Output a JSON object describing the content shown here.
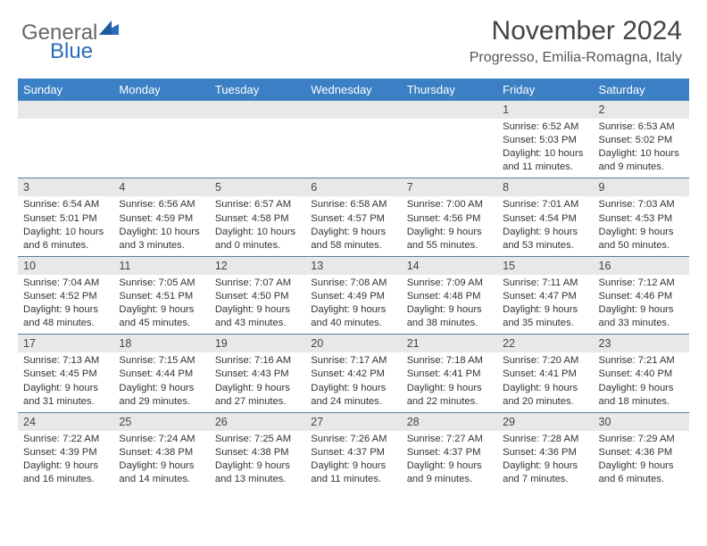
{
  "logo": {
    "general": "General",
    "blue": "Blue"
  },
  "title": "November 2024",
  "location": "Progresso, Emilia-Romagna, Italy",
  "colors": {
    "header_bg": "#3b7fc4",
    "header_text": "#ffffff",
    "daynum_bg": "#e8e8e8",
    "border": "#5a7a9a",
    "text": "#333333"
  },
  "day_headers": [
    "Sunday",
    "Monday",
    "Tuesday",
    "Wednesday",
    "Thursday",
    "Friday",
    "Saturday"
  ],
  "weeks": [
    {
      "nums": [
        "",
        "",
        "",
        "",
        "",
        "1",
        "2"
      ],
      "cells": [
        null,
        null,
        null,
        null,
        null,
        {
          "sunrise": "6:52 AM",
          "sunset": "5:03 PM",
          "daylight": "10 hours and 11 minutes."
        },
        {
          "sunrise": "6:53 AM",
          "sunset": "5:02 PM",
          "daylight": "10 hours and 9 minutes."
        }
      ]
    },
    {
      "nums": [
        "3",
        "4",
        "5",
        "6",
        "7",
        "8",
        "9"
      ],
      "cells": [
        {
          "sunrise": "6:54 AM",
          "sunset": "5:01 PM",
          "daylight": "10 hours and 6 minutes."
        },
        {
          "sunrise": "6:56 AM",
          "sunset": "4:59 PM",
          "daylight": "10 hours and 3 minutes."
        },
        {
          "sunrise": "6:57 AM",
          "sunset": "4:58 PM",
          "daylight": "10 hours and 0 minutes."
        },
        {
          "sunrise": "6:58 AM",
          "sunset": "4:57 PM",
          "daylight": "9 hours and 58 minutes."
        },
        {
          "sunrise": "7:00 AM",
          "sunset": "4:56 PM",
          "daylight": "9 hours and 55 minutes."
        },
        {
          "sunrise": "7:01 AM",
          "sunset": "4:54 PM",
          "daylight": "9 hours and 53 minutes."
        },
        {
          "sunrise": "7:03 AM",
          "sunset": "4:53 PM",
          "daylight": "9 hours and 50 minutes."
        }
      ]
    },
    {
      "nums": [
        "10",
        "11",
        "12",
        "13",
        "14",
        "15",
        "16"
      ],
      "cells": [
        {
          "sunrise": "7:04 AM",
          "sunset": "4:52 PM",
          "daylight": "9 hours and 48 minutes."
        },
        {
          "sunrise": "7:05 AM",
          "sunset": "4:51 PM",
          "daylight": "9 hours and 45 minutes."
        },
        {
          "sunrise": "7:07 AM",
          "sunset": "4:50 PM",
          "daylight": "9 hours and 43 minutes."
        },
        {
          "sunrise": "7:08 AM",
          "sunset": "4:49 PM",
          "daylight": "9 hours and 40 minutes."
        },
        {
          "sunrise": "7:09 AM",
          "sunset": "4:48 PM",
          "daylight": "9 hours and 38 minutes."
        },
        {
          "sunrise": "7:11 AM",
          "sunset": "4:47 PM",
          "daylight": "9 hours and 35 minutes."
        },
        {
          "sunrise": "7:12 AM",
          "sunset": "4:46 PM",
          "daylight": "9 hours and 33 minutes."
        }
      ]
    },
    {
      "nums": [
        "17",
        "18",
        "19",
        "20",
        "21",
        "22",
        "23"
      ],
      "cells": [
        {
          "sunrise": "7:13 AM",
          "sunset": "4:45 PM",
          "daylight": "9 hours and 31 minutes."
        },
        {
          "sunrise": "7:15 AM",
          "sunset": "4:44 PM",
          "daylight": "9 hours and 29 minutes."
        },
        {
          "sunrise": "7:16 AM",
          "sunset": "4:43 PM",
          "daylight": "9 hours and 27 minutes."
        },
        {
          "sunrise": "7:17 AM",
          "sunset": "4:42 PM",
          "daylight": "9 hours and 24 minutes."
        },
        {
          "sunrise": "7:18 AM",
          "sunset": "4:41 PM",
          "daylight": "9 hours and 22 minutes."
        },
        {
          "sunrise": "7:20 AM",
          "sunset": "4:41 PM",
          "daylight": "9 hours and 20 minutes."
        },
        {
          "sunrise": "7:21 AM",
          "sunset": "4:40 PM",
          "daylight": "9 hours and 18 minutes."
        }
      ]
    },
    {
      "nums": [
        "24",
        "25",
        "26",
        "27",
        "28",
        "29",
        "30"
      ],
      "cells": [
        {
          "sunrise": "7:22 AM",
          "sunset": "4:39 PM",
          "daylight": "9 hours and 16 minutes."
        },
        {
          "sunrise": "7:24 AM",
          "sunset": "4:38 PM",
          "daylight": "9 hours and 14 minutes."
        },
        {
          "sunrise": "7:25 AM",
          "sunset": "4:38 PM",
          "daylight": "9 hours and 13 minutes."
        },
        {
          "sunrise": "7:26 AM",
          "sunset": "4:37 PM",
          "daylight": "9 hours and 11 minutes."
        },
        {
          "sunrise": "7:27 AM",
          "sunset": "4:37 PM",
          "daylight": "9 hours and 9 minutes."
        },
        {
          "sunrise": "7:28 AM",
          "sunset": "4:36 PM",
          "daylight": "9 hours and 7 minutes."
        },
        {
          "sunrise": "7:29 AM",
          "sunset": "4:36 PM",
          "daylight": "9 hours and 6 minutes."
        }
      ]
    }
  ],
  "labels": {
    "sunrise": "Sunrise: ",
    "sunset": "Sunset: ",
    "daylight": "Daylight: "
  }
}
